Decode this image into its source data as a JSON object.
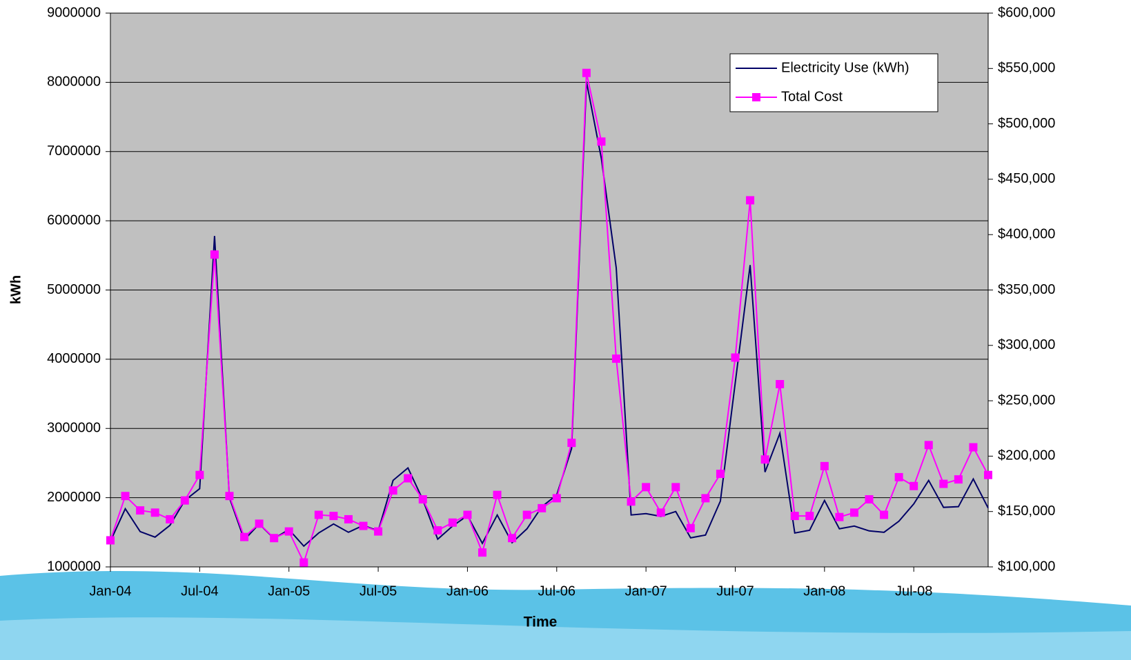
{
  "chart_data": {
    "type": "line",
    "x_label": "Time",
    "y_label": "kWh",
    "categories": [
      "Jan-04",
      null,
      null,
      null,
      null,
      null,
      "Jul-04",
      null,
      null,
      null,
      null,
      null,
      "Jan-05",
      null,
      null,
      null,
      null,
      null,
      "Jul-05",
      null,
      null,
      null,
      null,
      null,
      "Jan-06",
      null,
      null,
      null,
      null,
      null,
      "Jul-06",
      null,
      null,
      null,
      null,
      null,
      "Jan-07",
      null,
      null,
      null,
      null,
      null,
      "Jul-07",
      null,
      null,
      null,
      null,
      null,
      "Jan-08",
      null,
      null,
      null,
      null,
      null,
      "Jul-08",
      null,
      null,
      null,
      null,
      null
    ],
    "series": [
      {
        "name": "Electricity Use (kWh)",
        "color": "#000066",
        "marker": "none",
        "values": [
          1370000,
          1840000,
          1510000,
          1430000,
          1600000,
          1960000,
          2130000,
          5780000,
          2000000,
          1390000,
          1620000,
          1410000,
          1540000,
          1300000,
          1490000,
          1620000,
          1500000,
          1600000,
          1520000,
          2250000,
          2430000,
          1970000,
          1400000,
          1590000,
          1740000,
          1340000,
          1750000,
          1350000,
          1550000,
          1870000,
          2040000,
          2710000,
          8010000,
          6900000,
          5320000,
          1750000,
          1770000,
          1730000,
          1800000,
          1420000,
          1460000,
          1950000,
          3660000,
          5360000,
          2370000,
          2930000,
          1490000,
          1530000,
          1960000,
          1550000,
          1590000,
          1520000,
          1500000,
          1660000,
          1910000,
          2250000,
          1860000,
          1870000,
          2270000,
          1850000
        ]
      },
      {
        "name": "Total Cost",
        "color": "#ff00ff",
        "marker": "square",
        "axis": "y2",
        "values": [
          124000,
          164000,
          151000,
          149000,
          143000,
          160000,
          183000,
          382000,
          164000,
          127000,
          139000,
          126000,
          132000,
          104000,
          147000,
          146000,
          143000,
          137000,
          132000,
          169000,
          180000,
          161000,
          133000,
          140000,
          147000,
          113000,
          165000,
          126000,
          147000,
          153000,
          162000,
          212000,
          546000,
          484000,
          288000,
          159000,
          172000,
          149000,
          172000,
          135000,
          162000,
          184000,
          289000,
          431000,
          197000,
          265000,
          146000,
          146000,
          191000,
          145000,
          149000,
          161000,
          147000,
          181000,
          173000,
          210000,
          175000,
          179000,
          208000,
          183000
        ]
      }
    ],
    "ylim": [
      1000000,
      9000000
    ],
    "yticks": [
      1000000,
      2000000,
      3000000,
      4000000,
      5000000,
      6000000,
      7000000,
      8000000,
      9000000
    ],
    "y2lim": [
      100000,
      600000
    ],
    "y2ticks": [
      {
        "value": 100000,
        "label": "$100,000"
      },
      {
        "value": 150000,
        "label": "$150,000"
      },
      {
        "value": 200000,
        "label": "$200,000"
      },
      {
        "value": 250000,
        "label": "$250,000"
      },
      {
        "value": 300000,
        "label": "$300,000"
      },
      {
        "value": 350000,
        "label": "$350,000"
      },
      {
        "value": 400000,
        "label": "$400,000"
      },
      {
        "value": 450000,
        "label": "$450,000"
      },
      {
        "value": 500000,
        "label": "$500,000"
      },
      {
        "value": 550000,
        "label": "$550,000"
      },
      {
        "value": 600000,
        "label": "$600,000"
      }
    ],
    "grid": true,
    "legend": "upper right",
    "plot_background": "#c0c0c0"
  }
}
